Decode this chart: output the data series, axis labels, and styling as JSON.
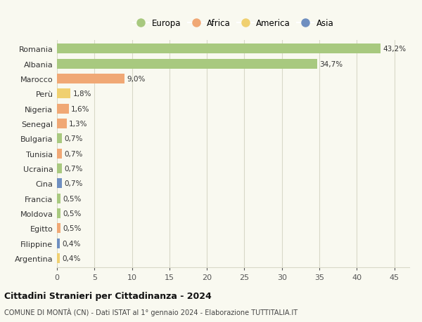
{
  "countries": [
    "Romania",
    "Albania",
    "Marocco",
    "Perù",
    "Nigeria",
    "Senegal",
    "Bulgaria",
    "Tunisia",
    "Ucraina",
    "Cina",
    "Francia",
    "Moldova",
    "Egitto",
    "Filippine",
    "Argentina"
  ],
  "values": [
    43.2,
    34.7,
    9.0,
    1.8,
    1.6,
    1.3,
    0.7,
    0.7,
    0.7,
    0.7,
    0.5,
    0.5,
    0.5,
    0.4,
    0.4
  ],
  "labels": [
    "43,2%",
    "34,7%",
    "9,0%",
    "1,8%",
    "1,6%",
    "1,3%",
    "0,7%",
    "0,7%",
    "0,7%",
    "0,7%",
    "0,5%",
    "0,5%",
    "0,5%",
    "0,4%",
    "0,4%"
  ],
  "continents": [
    "Europa",
    "Europa",
    "Africa",
    "America",
    "Africa",
    "Africa",
    "Europa",
    "Africa",
    "Europa",
    "Asia",
    "Europa",
    "Europa",
    "Africa",
    "Asia",
    "America"
  ],
  "continent_colors": {
    "Europa": "#a8c97f",
    "Africa": "#f0a875",
    "America": "#f0d070",
    "Asia": "#6f8fc0"
  },
  "legend_order": [
    "Europa",
    "Africa",
    "America",
    "Asia"
  ],
  "title": "Cittadini Stranieri per Cittadinanza - 2024",
  "subtitle": "COMUNE DI MONTÀ (CN) - Dati ISTAT al 1° gennaio 2024 - Elaborazione TUTTITALIA.IT",
  "xlim": [
    0,
    47
  ],
  "xticks": [
    0,
    5,
    10,
    15,
    20,
    25,
    30,
    35,
    40,
    45
  ],
  "bg_color": "#f9f9f0",
  "grid_color": "#d8d8c8",
  "bar_height": 0.65
}
